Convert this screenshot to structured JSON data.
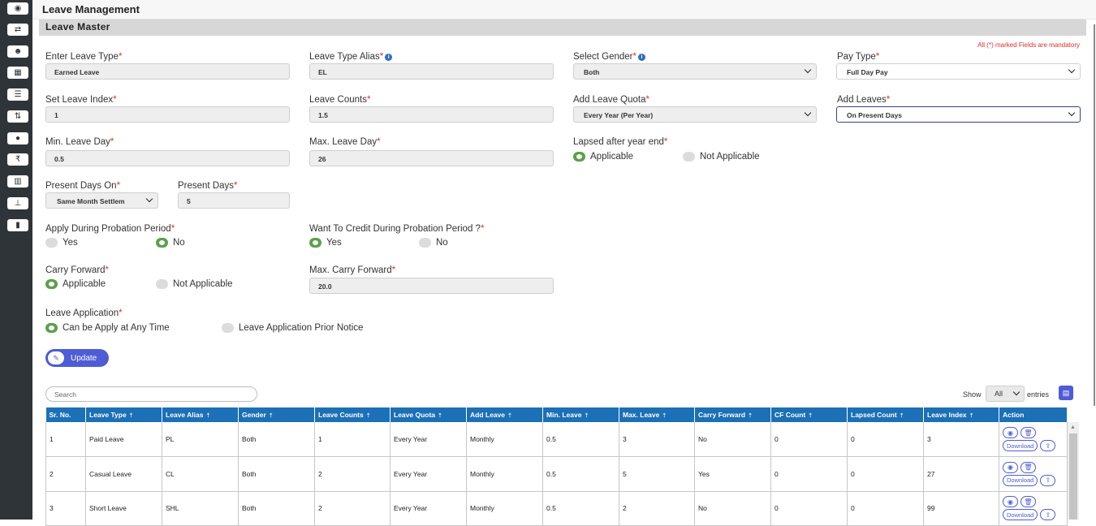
{
  "sidebar": {
    "icons": [
      "gauge-icon",
      "shuffle-icon",
      "users-icon",
      "calendar-icon",
      "list-icon",
      "sort-icon",
      "money-icon",
      "rupee-icon",
      "bar-chart-icon",
      "sitemap-icon",
      "bookmark-icon"
    ]
  },
  "header": {
    "title": "Leave Management"
  },
  "panel": {
    "title": "Leave Master",
    "mandatory_note": "All (*) marked Fields are mandatory"
  },
  "form": {
    "leave_type": {
      "label": "Enter Leave Type",
      "value": "Earned Leave"
    },
    "leave_alias": {
      "label": "Leave Type Alias",
      "value": "EL"
    },
    "gender": {
      "label": "Select Gender",
      "value": "Both"
    },
    "pay_type": {
      "label": "Pay Type",
      "value": "Full Day Pay"
    },
    "leave_index": {
      "label": "Set Leave Index",
      "value": "1"
    },
    "leave_counts": {
      "label": "Leave Counts",
      "value": "1.5"
    },
    "leave_quota": {
      "label": "Add Leave Quota",
      "value": "Every Year (Per Year)"
    },
    "add_leaves": {
      "label": "Add Leaves",
      "value": "On Present Days"
    },
    "min_leave_day": {
      "label": "Min. Leave Day",
      "value": "0.5"
    },
    "max_leave_day": {
      "label": "Max. Leave Day",
      "value": "26"
    },
    "lapsed": {
      "label": "Lapsed after year end",
      "options": [
        "Applicable",
        "Not Applicable"
      ],
      "selected": "Applicable"
    },
    "present_days_on": {
      "label": "Present Days On",
      "value": "Same Month Settlem"
    },
    "present_days": {
      "label": "Present Days",
      "value": "5"
    },
    "probation_apply": {
      "label": "Apply During Probation Period",
      "options": [
        "Yes",
        "No"
      ],
      "selected": "No"
    },
    "probation_credit": {
      "label": "Want To Credit During Probation Period ?",
      "options": [
        "Yes",
        "No"
      ],
      "selected": "Yes"
    },
    "carry_forward": {
      "label": "Carry Forward",
      "options": [
        "Applicable",
        "Not Applicable"
      ],
      "selected": "Applicable"
    },
    "max_carry_forward": {
      "label": "Max. Carry Forward",
      "value": "20.0"
    },
    "leave_application": {
      "label": "Leave Application",
      "options": [
        "Can be Apply at Any Time",
        "Leave Application Prior Notice"
      ],
      "selected": "Can be Apply at Any Time"
    },
    "update_label": "Update"
  },
  "table_controls": {
    "search_placeholder": "Search",
    "show_label": "Show",
    "show_value": "All",
    "entries_label": "entries"
  },
  "table": {
    "columns": [
      "Sr. No.",
      "Leave Type",
      "Leave Alias",
      "Gender",
      "Leave Counts",
      "Leave Quota",
      "Add Leave",
      "Min. Leave",
      "Max. Leave",
      "Carry Forward",
      "CF Count",
      "Lapsed Count",
      "Leave Index",
      "Action"
    ],
    "rows": [
      [
        "1",
        "Paid Leave",
        "PL",
        "Both",
        "1",
        "Every Year",
        "Monthly",
        "0.5",
        "3",
        "No",
        "0",
        "0",
        "3"
      ],
      [
        "2",
        "Casual Leave",
        "CL",
        "Both",
        "2",
        "Every Year",
        "Monthly",
        "0.5",
        "5",
        "Yes",
        "0",
        "0",
        "27"
      ],
      [
        "3",
        "Short Leave",
        "SHL",
        "Both",
        "2",
        "Every Year",
        "Monthly",
        "0.5",
        "2",
        "No",
        "0",
        "0",
        "99"
      ]
    ],
    "download_label": "Download"
  }
}
